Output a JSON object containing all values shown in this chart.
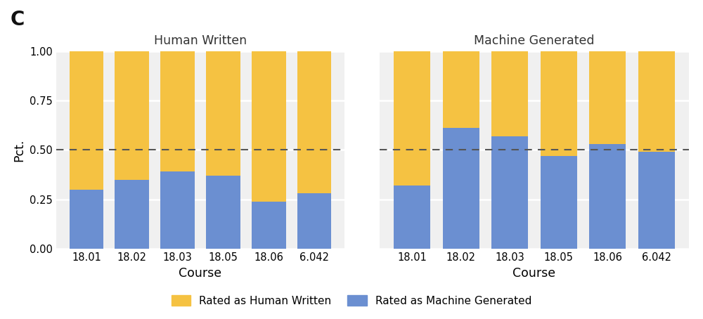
{
  "courses": [
    "18.01",
    "18.02",
    "18.03",
    "18.05",
    "18.06",
    "6.042"
  ],
  "human_written": {
    "machine_rated": [
      0.3,
      0.35,
      0.39,
      0.37,
      0.24,
      0.28
    ],
    "human_rated": [
      0.7,
      0.65,
      0.61,
      0.63,
      0.76,
      0.72
    ]
  },
  "machine_generated": {
    "machine_rated": [
      0.32,
      0.61,
      0.57,
      0.47,
      0.53,
      0.49
    ],
    "human_rated": [
      0.68,
      0.39,
      0.43,
      0.53,
      0.47,
      0.51
    ]
  },
  "color_machine": "#6b8fd1",
  "color_human": "#f5c242",
  "panel_label": "C",
  "panel1_title": "Human Written",
  "panel2_title": "Machine Generated",
  "xlabel": "Course",
  "ylabel": "Pct.",
  "legend_human": "Rated as Human Written",
  "legend_machine": "Rated as Machine Generated",
  "ylim": [
    0,
    1.0
  ],
  "yticks": [
    0.0,
    0.25,
    0.5,
    0.75,
    1.0
  ],
  "dashed_line_y": 0.5,
  "bar_width": 0.75,
  "background_color": "#ffffff",
  "plot_bg_color": "#f0f0f0"
}
